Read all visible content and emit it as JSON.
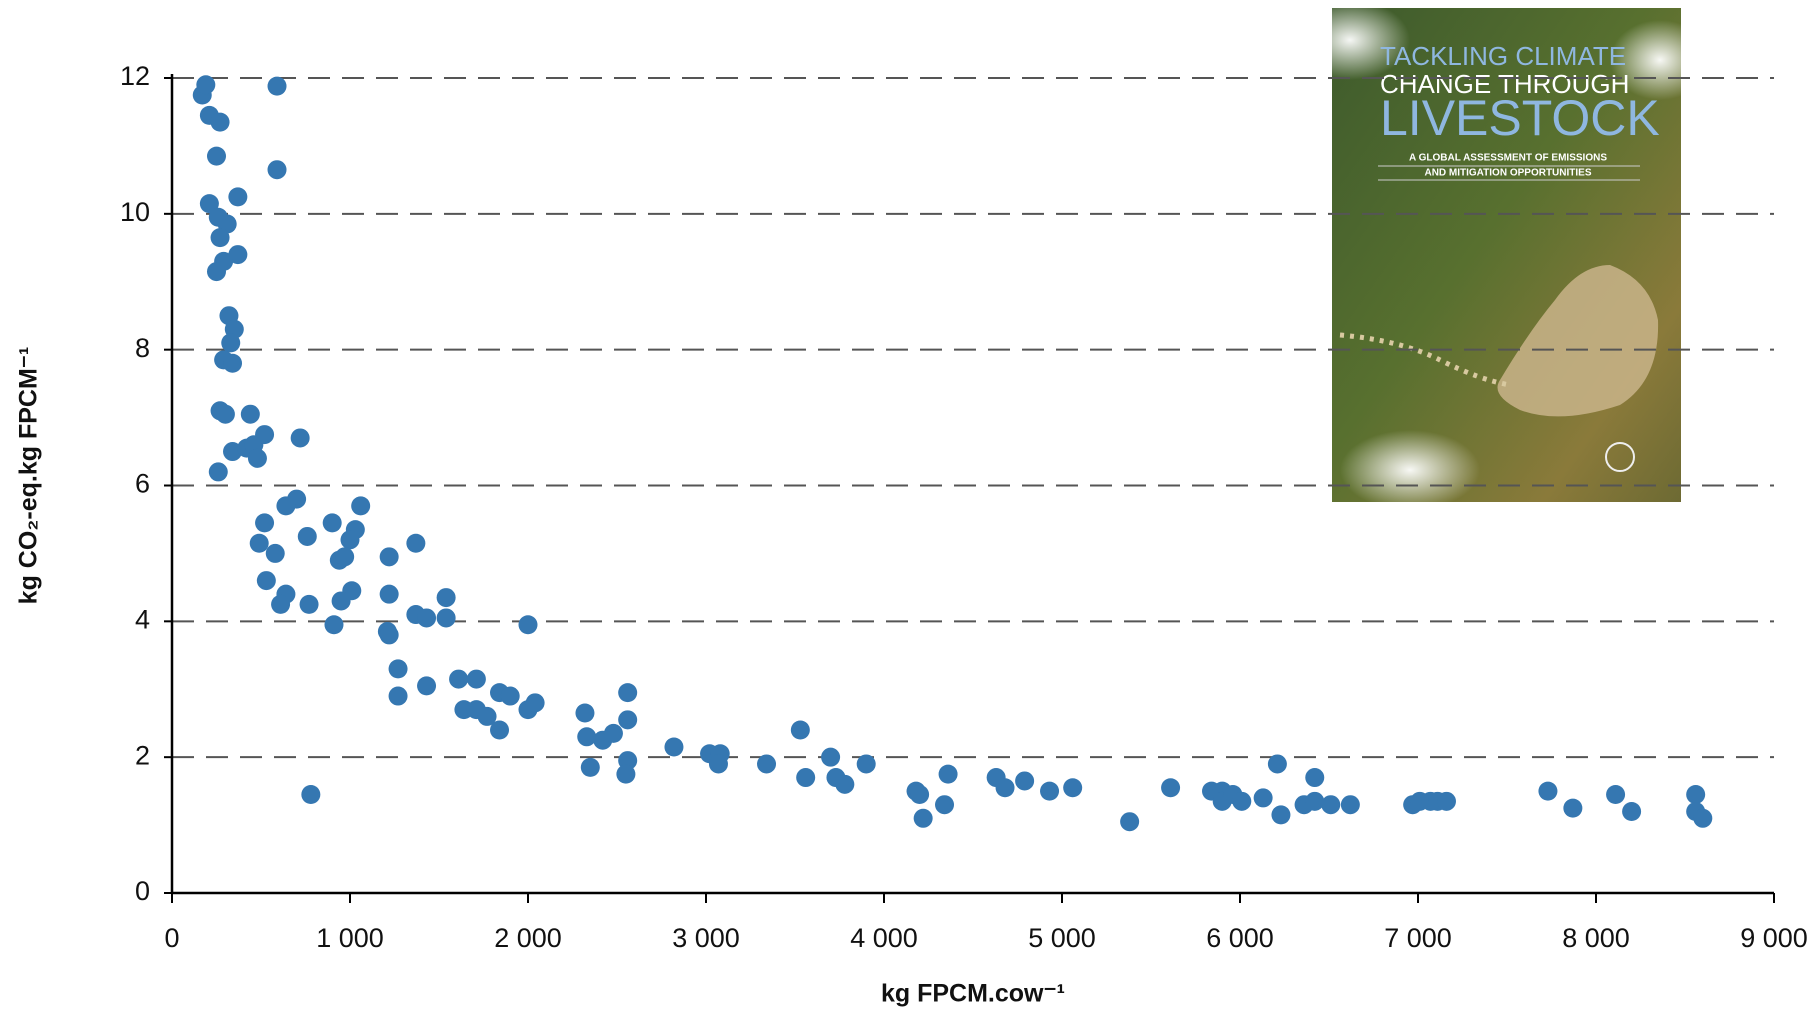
{
  "chart_data": {
    "type": "scatter",
    "xlabel": "kg FPCM.cow⁻¹",
    "ylabel": "kg CO₂-eq.kg FPCM⁻¹",
    "xlim": [
      0,
      9000
    ],
    "xticks": [
      0,
      {
        "value": 1000,
        "label": "1 000"
      },
      {
        "value": 2000,
        "label": "2 000"
      },
      {
        "value": 3000,
        "label": "3 000"
      },
      {
        "value": 4000,
        "label": "4 000"
      },
      {
        "value": 5000,
        "label": "5 000"
      },
      {
        "value": 6000,
        "label": "6 000"
      },
      {
        "value": 7000,
        "label": "7 000"
      },
      {
        "value": 8000,
        "label": "8 000"
      },
      {
        "value": 9000,
        "label": "9 000"
      }
    ],
    "ylim": [
      0,
      12
    ],
    "yticks": [
      0,
      2,
      4,
      6,
      8,
      10,
      12
    ],
    "grid": true,
    "series": [
      {
        "color": "#3577b1",
        "x": [
          170,
          190,
          590,
          210,
          270,
          250,
          590,
          370,
          210,
          260,
          310,
          270,
          370,
          290,
          250,
          320,
          350,
          330,
          290,
          340,
          270,
          300,
          440,
          340,
          420,
          460,
          520,
          720,
          480,
          260,
          700,
          640,
          1060,
          520,
          900,
          1030,
          760,
          1000,
          1370,
          490,
          580,
          940,
          970,
          1220,
          530,
          640,
          610,
          770,
          1010,
          950,
          1220,
          1540,
          1370,
          1430,
          1540,
          910,
          2000,
          1210,
          1220,
          1270,
          1430,
          1610,
          1710,
          1270,
          1840,
          1900,
          2560,
          1640,
          1710,
          1770,
          1840,
          2000,
          2040,
          2320,
          2560,
          2420,
          2330,
          2480,
          2820,
          3530,
          3020,
          3080,
          3070,
          2560,
          2350,
          2550,
          3340,
          3700,
          3900,
          3560,
          3730,
          3780,
          780,
          4180,
          4200,
          4360,
          4220,
          4340,
          4630,
          4680,
          4790,
          4930,
          5060,
          5380,
          5610,
          5840,
          5900,
          5900,
          5960,
          6010,
          6130,
          6210,
          6230,
          6360,
          6420,
          6420,
          6510,
          6620,
          6970,
          7010,
          7070,
          7110,
          7160,
          7730,
          7870,
          8110,
          8200,
          8560,
          8560,
          8600
        ],
        "values": [
          11.75,
          11.9,
          11.88,
          11.45,
          11.35,
          10.85,
          10.65,
          10.25,
          10.15,
          9.95,
          9.85,
          9.65,
          9.4,
          9.3,
          9.15,
          8.5,
          8.3,
          8.1,
          7.85,
          7.8,
          7.1,
          7.05,
          7.05,
          6.5,
          6.55,
          6.6,
          6.75,
          6.7,
          6.4,
          6.2,
          5.8,
          5.7,
          5.7,
          5.45,
          5.45,
          5.35,
          5.25,
          5.2,
          5.15,
          5.15,
          5.0,
          4.9,
          4.95,
          4.95,
          4.6,
          4.4,
          4.25,
          4.25,
          4.45,
          4.3,
          4.4,
          4.35,
          4.1,
          4.05,
          4.05,
          3.95,
          3.95,
          3.85,
          3.8,
          3.3,
          3.05,
          3.15,
          3.15,
          2.9,
          2.95,
          2.9,
          2.95,
          2.7,
          2.7,
          2.6,
          2.4,
          2.7,
          2.8,
          2.65,
          2.55,
          2.25,
          2.3,
          2.35,
          2.15,
          2.4,
          2.05,
          2.05,
          1.9,
          1.95,
          1.85,
          1.75,
          1.9,
          2.0,
          1.9,
          1.7,
          1.7,
          1.6,
          1.45,
          1.5,
          1.45,
          1.75,
          1.1,
          1.3,
          1.7,
          1.55,
          1.65,
          1.5,
          1.55,
          1.05,
          1.55,
          1.5,
          1.5,
          1.35,
          1.45,
          1.35,
          1.4,
          1.9,
          1.15,
          1.3,
          1.7,
          1.35,
          1.3,
          1.3,
          1.3,
          1.35,
          1.35,
          1.35,
          1.35,
          1.5,
          1.25,
          1.45,
          1.2,
          1.45,
          1.2,
          1.1
        ]
      }
    ]
  },
  "cover": {
    "title": [
      "TACKLING CLIMATE",
      "CHANGE THROUGH",
      "LIVESTOCK"
    ],
    "subtitle": [
      "A GLOBAL ASSESSMENT OF EMISSIONS",
      "AND MITIGATION OPPORTUNITIES"
    ]
  }
}
